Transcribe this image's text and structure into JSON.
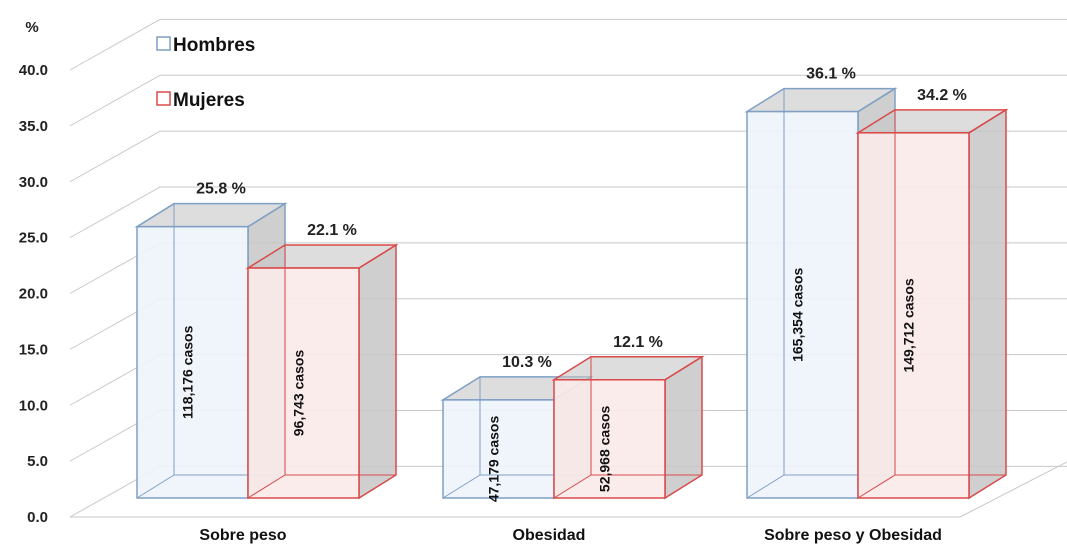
{
  "chart_data": {
    "type": "bar",
    "y_unit_label": "%",
    "categories": [
      "Sobre peso",
      "Obesidad",
      "Sobre peso y Obesidad"
    ],
    "series": [
      {
        "name": "Hombres",
        "values": [
          25.8,
          10.3,
          36.1
        ],
        "value_labels": [
          "25.8 %",
          "10.3 %",
          "36.1 %"
        ],
        "case_labels": [
          "118,176 casos",
          "47,179 casos",
          "165,354 casos"
        ]
      },
      {
        "name": "Mujeres",
        "values": [
          22.1,
          12.1,
          34.2
        ],
        "value_labels": [
          "22.1 %",
          "12.1 %",
          "34.2 %"
        ],
        "case_labels": [
          "96,743 casos",
          "52,968 casos",
          "149,712 casos"
        ]
      }
    ],
    "y_ticks": [
      "0.0",
      "5.0",
      "10.0",
      "15.0",
      "20.0",
      "25.0",
      "30.0",
      "35.0",
      "40.0"
    ],
    "ylim": [
      0,
      40
    ],
    "grid": true,
    "legend_position": "top-left",
    "style": "3d-box",
    "colors": {
      "hombres_stroke": "#7f9fc4",
      "hombres_fill": "#eef3fb",
      "mujeres_stroke": "#d94a4a",
      "mujeres_fill": "#fbeaea",
      "side_fill": "#c7c7c7",
      "grid": "#c8c8c8"
    }
  }
}
